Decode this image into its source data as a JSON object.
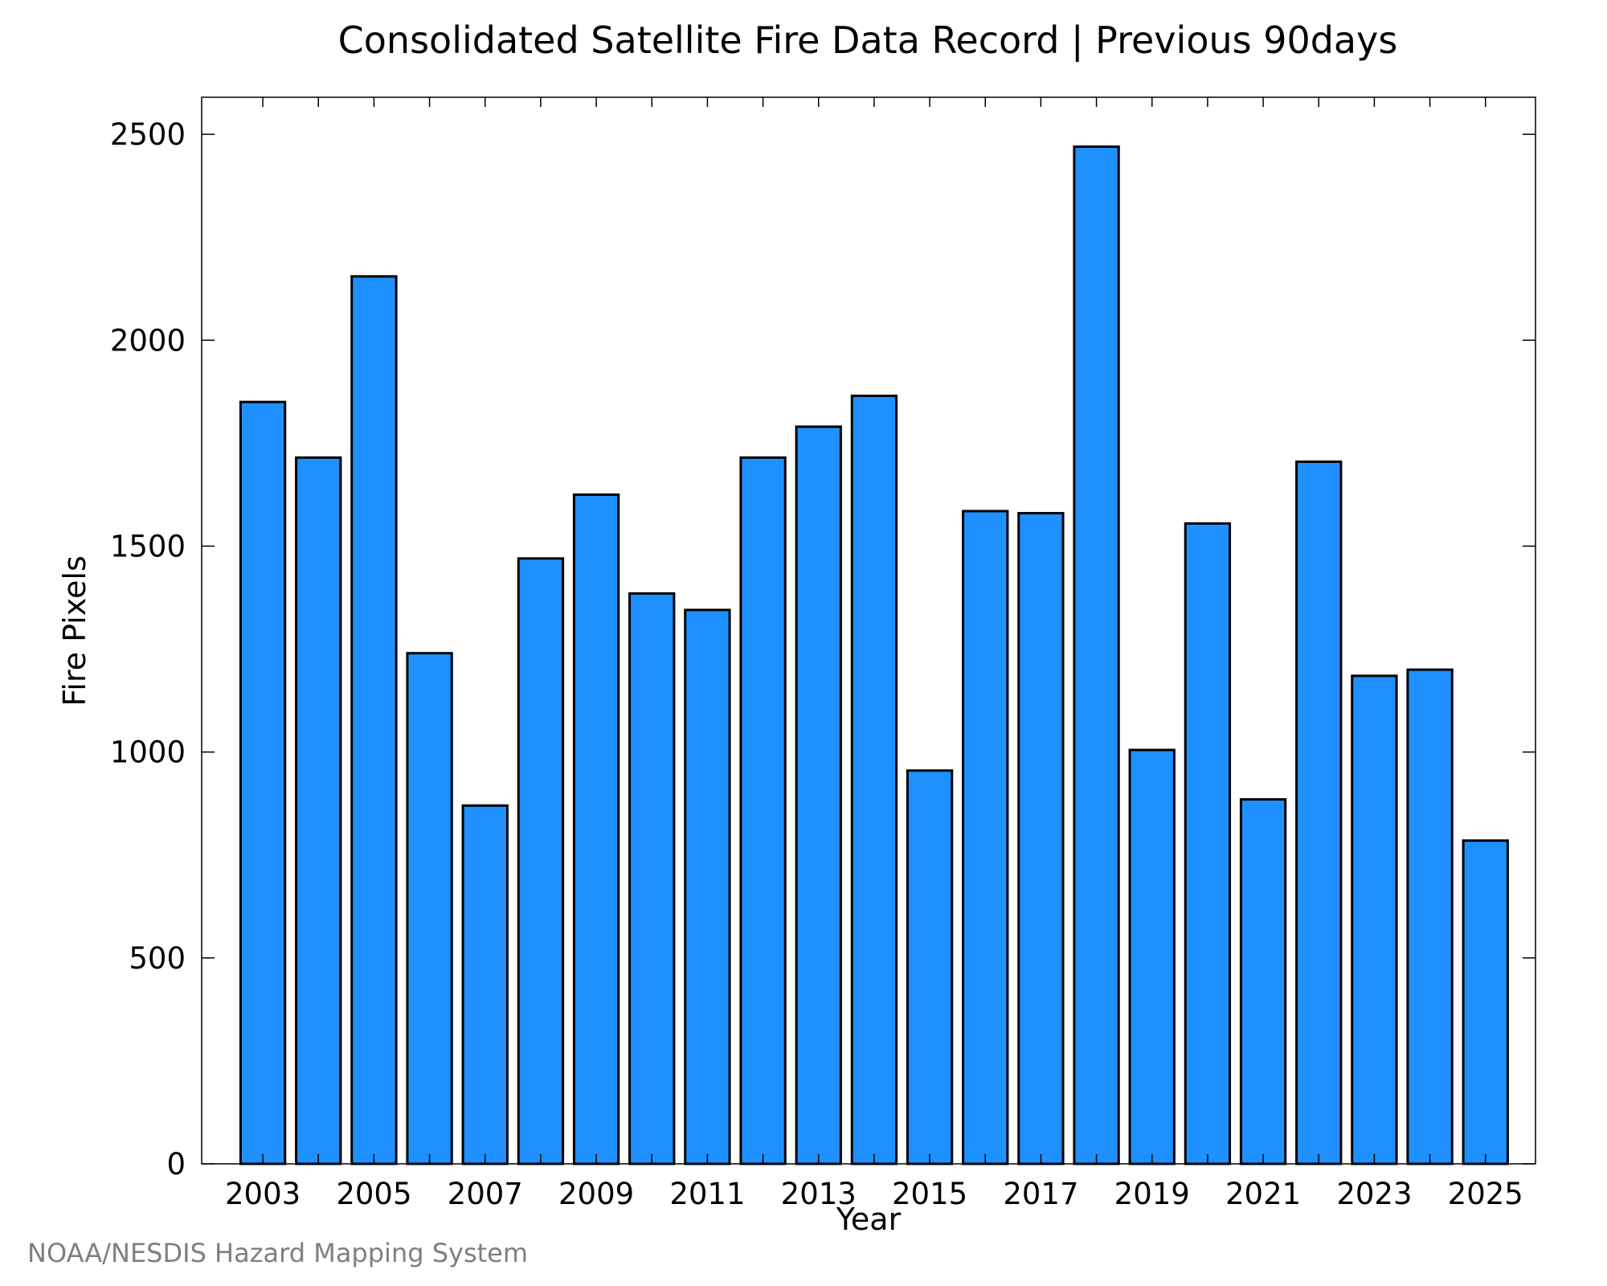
{
  "chart_data": {
    "type": "bar",
    "title": "Consolidated Satellite Fire Data Record | Previous 90days",
    "xlabel": "Year",
    "ylabel": "Fire Pixels",
    "x": [
      2003,
      2004,
      2005,
      2006,
      2007,
      2008,
      2009,
      2010,
      2011,
      2012,
      2013,
      2014,
      2015,
      2016,
      2017,
      2018,
      2019,
      2020,
      2021,
      2022,
      2023,
      2024,
      2025
    ],
    "values": [
      1850,
      1715,
      2155,
      1240,
      870,
      1470,
      1625,
      1385,
      1345,
      1715,
      1790,
      1865,
      955,
      1585,
      1580,
      2470,
      1005,
      1555,
      885,
      1705,
      1185,
      1200,
      785
    ],
    "xlim": [
      2001.9,
      2025.9
    ],
    "ylim": [
      0,
      2590
    ],
    "yticks": [
      0,
      500,
      1000,
      1500,
      2000,
      2500
    ],
    "yticklabels": [
      "0",
      "500",
      "1000",
      "1500",
      "2000",
      "2500"
    ],
    "xticks": [
      2003,
      2005,
      2007,
      2009,
      2011,
      2013,
      2015,
      2017,
      2019,
      2021,
      2023,
      2025
    ],
    "xticklabels": [
      "2003",
      "2005",
      "2007",
      "2009",
      "2011",
      "2013",
      "2015",
      "2017",
      "2019",
      "2021",
      "2023",
      "2025"
    ],
    "bar_color": "#1e90ff",
    "bar_edge_color": "#000000",
    "grid": false,
    "legend": "none"
  },
  "footer": "NOAA/NESDIS Hazard Mapping System"
}
